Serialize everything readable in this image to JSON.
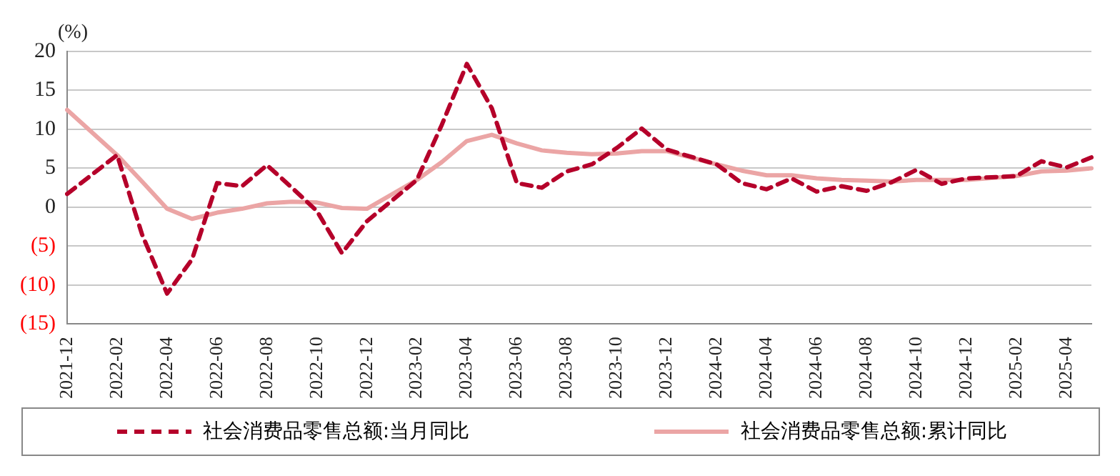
{
  "chart_data": {
    "type": "line",
    "ylabel": "(%)",
    "categories": [
      "2021-12",
      null,
      "2022-02",
      null,
      "2022-04",
      null,
      "2022-06",
      null,
      "2022-08",
      null,
      "2022-10",
      null,
      "2022-12",
      null,
      "2023-02",
      null,
      "2023-04",
      null,
      "2023-06",
      null,
      "2023-08",
      null,
      "2023-10",
      null,
      "2023-12",
      null,
      "2024-02",
      null,
      "2024-04",
      null,
      "2024-06",
      null,
      "2024-08",
      null,
      "2024-10",
      null,
      "2024-12",
      null,
      "2025-02",
      null,
      "2025-04",
      null
    ],
    "series": [
      {
        "name": "社会消费品零售总额:当月同比",
        "color": "#b5002a",
        "line_style": "dashed",
        "values": [
          1.7,
          null,
          6.7,
          -3.5,
          -11.1,
          -6.7,
          3.1,
          2.7,
          5.4,
          2.5,
          -0.5,
          -5.9,
          -1.8,
          null,
          3.5,
          10.6,
          18.4,
          12.7,
          3.1,
          2.5,
          4.6,
          5.5,
          7.6,
          10.1,
          7.4,
          null,
          5.5,
          3.1,
          2.3,
          3.7,
          2.0,
          2.7,
          2.1,
          3.2,
          4.8,
          3.0,
          3.7,
          null,
          4.0,
          5.9,
          5.1,
          6.4
        ]
      },
      {
        "name": "社会消费品零售总额:累计同比",
        "color": "#eba5a5",
        "line_style": "solid",
        "values": [
          12.5,
          null,
          6.7,
          3.3,
          -0.2,
          -1.5,
          -0.7,
          -0.2,
          0.5,
          0.7,
          0.6,
          -0.1,
          -0.2,
          null,
          3.5,
          5.8,
          8.5,
          9.3,
          8.2,
          7.3,
          7.0,
          6.8,
          6.9,
          7.2,
          7.2,
          null,
          5.5,
          4.7,
          4.1,
          4.1,
          3.7,
          3.5,
          3.4,
          3.3,
          3.5,
          3.5,
          3.5,
          null,
          4.0,
          4.6,
          4.7,
          5.0
        ]
      }
    ],
    "ylim": [
      -15,
      20
    ],
    "yticks": [
      {
        "value": -15,
        "label": "(15)"
      },
      {
        "value": -10,
        "label": "(10)"
      },
      {
        "value": -5,
        "label": "(5)"
      },
      0,
      5,
      10,
      15,
      20
    ],
    "grid": "y",
    "legend": "bottom",
    "marker": "none"
  }
}
